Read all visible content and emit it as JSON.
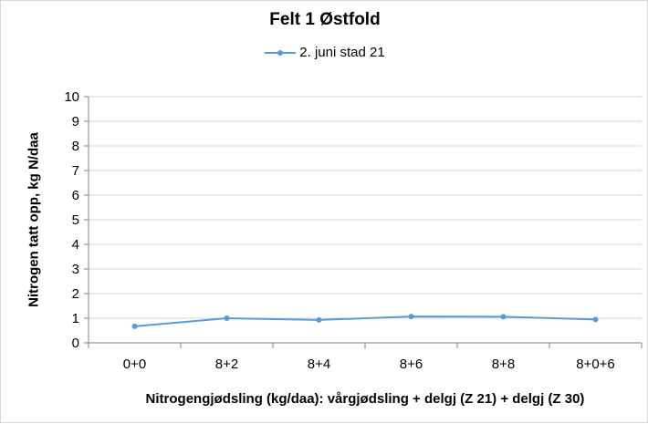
{
  "chart_data": {
    "type": "line",
    "title": "Felt 1 Østfold",
    "xlabel": "Nitrogengjødsling (kg/daa): vårgjødsling + delgj (Z 21) + delgj (Z 30)",
    "ylabel": "Nitrogen tatt opp, kg N/daa",
    "categories": [
      "0+0",
      "8+2",
      "8+4",
      "8+6",
      "8+8",
      "8+0+6"
    ],
    "series": [
      {
        "name": "2. juni stad 21",
        "values": [
          0.67,
          1.0,
          0.93,
          1.07,
          1.06,
          0.95
        ],
        "color": "#5b9bd5"
      }
    ],
    "ylim": [
      0,
      10
    ],
    "yticks": [
      0,
      1,
      2,
      3,
      4,
      5,
      6,
      7,
      8,
      9,
      10
    ],
    "grid": true,
    "legend": "top"
  }
}
